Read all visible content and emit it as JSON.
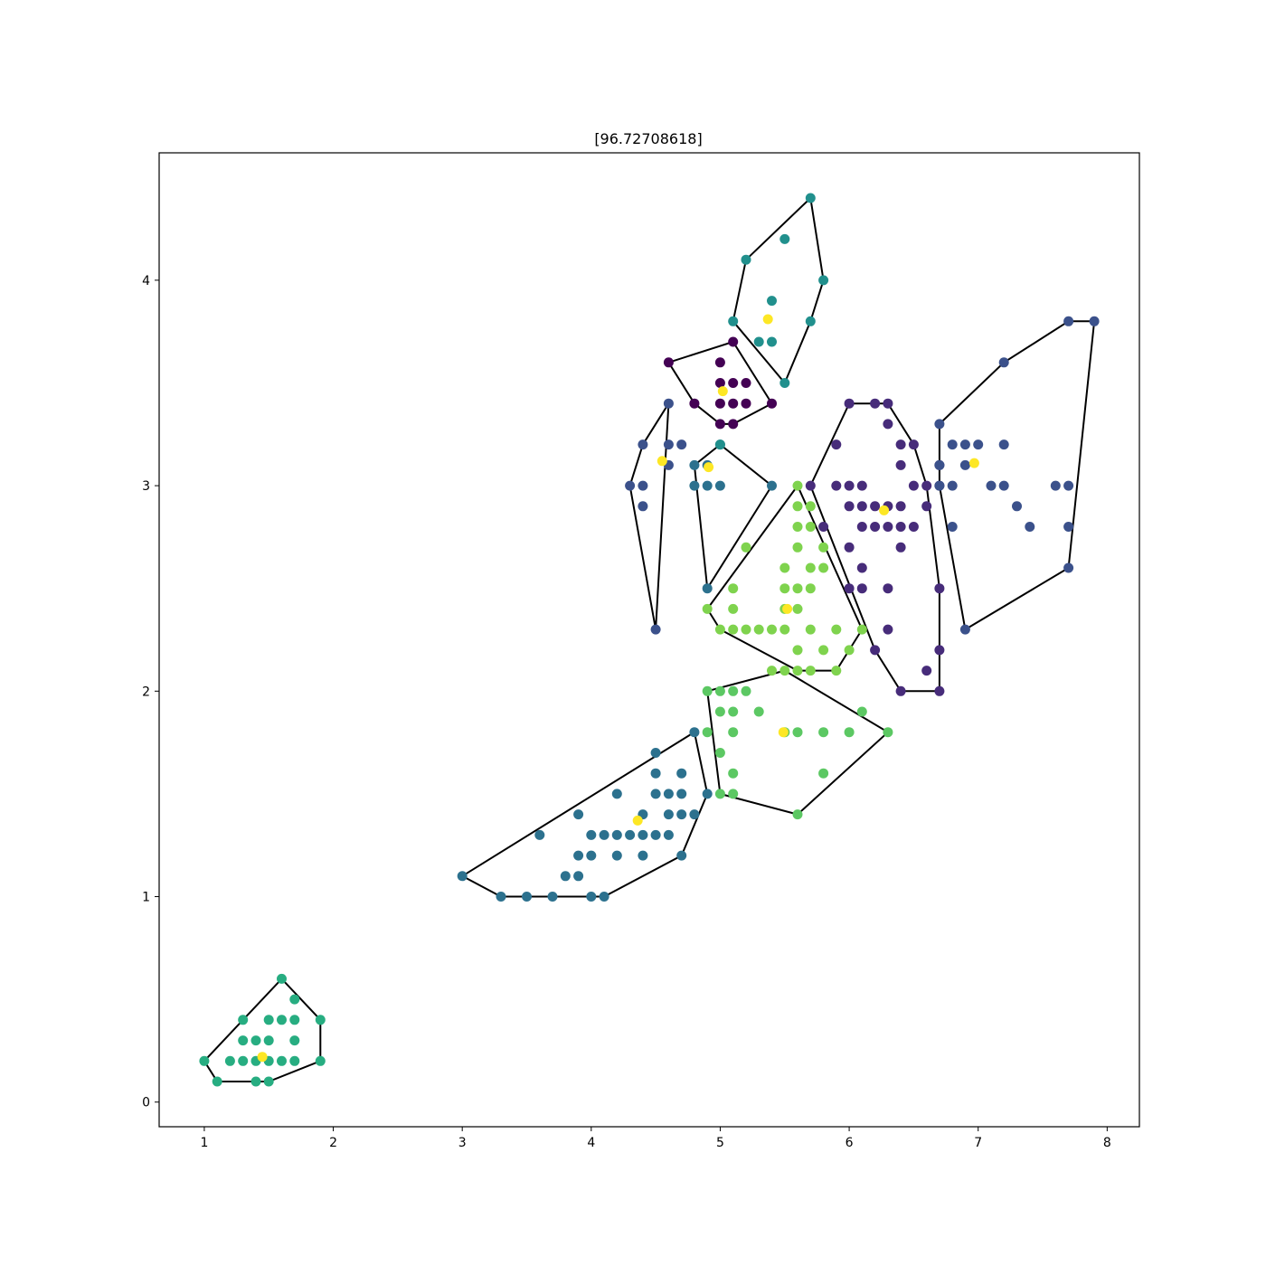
{
  "chart_data": {
    "type": "scatter",
    "title": "[96.72708618]",
    "xlabel": "",
    "ylabel": "",
    "xlim": [
      0.65,
      8.25
    ],
    "ylim": [
      -0.12,
      4.62
    ],
    "xticks": [
      1,
      2,
      3,
      4,
      5,
      6,
      7,
      8
    ],
    "yticks": [
      0,
      1,
      2,
      3,
      4
    ],
    "grid": false,
    "legend": "none",
    "colors": {
      "c0": "#440154",
      "c1": "#472c7a",
      "c2": "#3b518b",
      "c3": "#2c718e",
      "c4": "#21908d",
      "c5": "#27ad81",
      "c6": "#5cc863",
      "c7": "#7fd34e",
      "centroid": "#fde725",
      "hull": "#000000"
    },
    "clusters": [
      {
        "color": "c0",
        "points": [
          [
            4.6,
            3.6
          ],
          [
            4.8,
            3.4
          ],
          [
            5.0,
            3.6
          ],
          [
            5.0,
            3.5
          ],
          [
            5.0,
            3.4
          ],
          [
            5.0,
            3.3
          ],
          [
            5.1,
            3.7
          ],
          [
            5.1,
            3.5
          ],
          [
            5.1,
            3.4
          ],
          [
            5.1,
            3.3
          ],
          [
            5.2,
            3.5
          ],
          [
            5.2,
            3.4
          ],
          [
            5.4,
            3.4
          ]
        ],
        "hull": [
          [
            4.6,
            3.6
          ],
          [
            5.1,
            3.7
          ],
          [
            5.4,
            3.4
          ],
          [
            5.1,
            3.3
          ],
          [
            5.0,
            3.3
          ],
          [
            4.8,
            3.4
          ],
          [
            4.6,
            3.6
          ]
        ],
        "centroid": [
          5.02,
          3.46
        ]
      },
      {
        "color": "c1",
        "points": [
          [
            5.7,
            3.0
          ],
          [
            5.8,
            2.8
          ],
          [
            5.9,
            3.2
          ],
          [
            5.9,
            3.0
          ],
          [
            6.0,
            3.4
          ],
          [
            6.0,
            3.0
          ],
          [
            6.0,
            2.9
          ],
          [
            6.0,
            2.7
          ],
          [
            6.0,
            2.5
          ],
          [
            6.1,
            3.0
          ],
          [
            6.1,
            2.9
          ],
          [
            6.1,
            2.8
          ],
          [
            6.1,
            2.6
          ],
          [
            6.1,
            2.5
          ],
          [
            6.2,
            3.4
          ],
          [
            6.2,
            2.9
          ],
          [
            6.2,
            2.8
          ],
          [
            6.2,
            2.2
          ],
          [
            6.3,
            3.4
          ],
          [
            6.3,
            3.3
          ],
          [
            6.3,
            2.9
          ],
          [
            6.3,
            2.8
          ],
          [
            6.3,
            2.5
          ],
          [
            6.3,
            2.3
          ],
          [
            6.4,
            3.2
          ],
          [
            6.4,
            3.1
          ],
          [
            6.4,
            2.9
          ],
          [
            6.4,
            2.8
          ],
          [
            6.4,
            2.7
          ],
          [
            6.4,
            2.0
          ],
          [
            6.5,
            3.2
          ],
          [
            6.5,
            3.0
          ],
          [
            6.5,
            2.8
          ],
          [
            6.6,
            3.0
          ],
          [
            6.6,
            2.9
          ],
          [
            6.6,
            2.1
          ],
          [
            6.7,
            3.1
          ],
          [
            6.7,
            3.0
          ],
          [
            6.7,
            2.5
          ],
          [
            6.7,
            2.2
          ],
          [
            6.7,
            2.0
          ]
        ],
        "hull": [
          [
            5.7,
            3.0
          ],
          [
            6.0,
            3.4
          ],
          [
            6.3,
            3.4
          ],
          [
            6.5,
            3.2
          ],
          [
            6.6,
            3.0
          ],
          [
            6.7,
            2.5
          ],
          [
            6.7,
            2.0
          ],
          [
            6.4,
            2.0
          ],
          [
            6.2,
            2.2
          ],
          [
            5.7,
            3.0
          ]
        ],
        "centroid": [
          6.27,
          2.88
        ]
      },
      {
        "color": "c2",
        "points": [
          [
            6.7,
            3.3
          ],
          [
            6.7,
            3.1
          ],
          [
            6.7,
            3.0
          ],
          [
            6.8,
            3.2
          ],
          [
            6.8,
            3.0
          ],
          [
            6.8,
            2.8
          ],
          [
            6.9,
            3.2
          ],
          [
            6.9,
            3.1
          ],
          [
            6.9,
            2.3
          ],
          [
            7.0,
            3.2
          ],
          [
            7.1,
            3.0
          ],
          [
            7.2,
            3.6
          ],
          [
            7.2,
            3.2
          ],
          [
            7.2,
            3.0
          ],
          [
            7.3,
            2.9
          ],
          [
            7.4,
            2.8
          ],
          [
            7.6,
            3.0
          ],
          [
            7.7,
            3.8
          ],
          [
            7.7,
            3.0
          ],
          [
            7.7,
            2.8
          ],
          [
            7.7,
            2.6
          ],
          [
            7.9,
            3.8
          ],
          [
            4.3,
            3.0
          ],
          [
            4.4,
            3.2
          ],
          [
            4.4,
            3.0
          ],
          [
            4.4,
            2.9
          ],
          [
            4.5,
            2.3
          ],
          [
            4.6,
            3.4
          ],
          [
            4.6,
            3.2
          ],
          [
            4.6,
            3.1
          ],
          [
            4.7,
            3.2
          ]
        ],
        "hull": [
          [
            6.7,
            3.3
          ],
          [
            7.2,
            3.6
          ],
          [
            7.7,
            3.8
          ],
          [
            7.9,
            3.8
          ],
          [
            7.7,
            2.6
          ],
          [
            6.9,
            2.3
          ],
          [
            6.7,
            3.0
          ],
          [
            6.7,
            3.3
          ]
        ],
        "centroid": [
          6.97,
          3.11
        ]
      },
      {
        "color": "c2",
        "points": [],
        "hull": [
          [
            4.3,
            3.0
          ],
          [
            4.4,
            3.2
          ],
          [
            4.6,
            3.4
          ],
          [
            4.5,
            2.3
          ],
          [
            4.3,
            3.0
          ]
        ],
        "centroid": [
          4.55,
          3.12
        ]
      },
      {
        "color": "c3",
        "points": [
          [
            4.8,
            3.1
          ],
          [
            4.8,
            3.0
          ],
          [
            4.9,
            3.1
          ],
          [
            4.9,
            3.0
          ],
          [
            4.9,
            2.5
          ],
          [
            5.0,
            3.2
          ],
          [
            5.0,
            3.0
          ],
          [
            5.4,
            3.0
          ]
        ],
        "hull": [
          [
            4.8,
            3.1
          ],
          [
            5.0,
            3.2
          ],
          [
            5.4,
            3.0
          ],
          [
            4.9,
            2.5
          ],
          [
            4.8,
            3.1
          ]
        ],
        "centroid": [
          4.91,
          3.09
        ]
      },
      {
        "color": "c3",
        "points": [
          [
            3.0,
            1.1
          ],
          [
            3.3,
            1.0
          ],
          [
            3.5,
            1.0
          ],
          [
            3.6,
            1.3
          ],
          [
            3.7,
            1.0
          ],
          [
            3.8,
            1.1
          ],
          [
            3.9,
            1.4
          ],
          [
            3.9,
            1.2
          ],
          [
            3.9,
            1.1
          ],
          [
            4.0,
            1.3
          ],
          [
            4.0,
            1.2
          ],
          [
            4.0,
            1.0
          ],
          [
            4.1,
            1.3
          ],
          [
            4.1,
            1.0
          ],
          [
            4.2,
            1.5
          ],
          [
            4.2,
            1.3
          ],
          [
            4.2,
            1.2
          ],
          [
            4.3,
            1.3
          ],
          [
            4.4,
            1.4
          ],
          [
            4.4,
            1.3
          ],
          [
            4.4,
            1.2
          ],
          [
            4.5,
            1.7
          ],
          [
            4.5,
            1.6
          ],
          [
            4.5,
            1.5
          ],
          [
            4.5,
            1.3
          ],
          [
            4.6,
            1.5
          ],
          [
            4.6,
            1.4
          ],
          [
            4.6,
            1.3
          ],
          [
            4.7,
            1.6
          ],
          [
            4.7,
            1.5
          ],
          [
            4.7,
            1.4
          ],
          [
            4.7,
            1.2
          ],
          [
            4.8,
            1.8
          ],
          [
            4.8,
            1.4
          ],
          [
            4.9,
            1.5
          ]
        ],
        "hull": [
          [
            3.0,
            1.1
          ],
          [
            4.8,
            1.8
          ],
          [
            4.9,
            1.5
          ],
          [
            4.7,
            1.2
          ],
          [
            4.1,
            1.0
          ],
          [
            3.3,
            1.0
          ],
          [
            3.0,
            1.1
          ]
        ],
        "centroid": [
          4.36,
          1.37
        ]
      },
      {
        "color": "c4",
        "points": [
          [
            5.0,
            3.2
          ],
          [
            5.1,
            3.8
          ],
          [
            5.2,
            4.1
          ],
          [
            5.3,
            3.7
          ],
          [
            5.4,
            3.9
          ],
          [
            5.4,
            3.7
          ],
          [
            5.5,
            4.2
          ],
          [
            5.5,
            3.5
          ],
          [
            5.7,
            4.4
          ],
          [
            5.7,
            3.8
          ],
          [
            5.8,
            4.0
          ]
        ],
        "hull": [
          [
            5.1,
            3.8
          ],
          [
            5.2,
            4.1
          ],
          [
            5.7,
            4.4
          ],
          [
            5.8,
            4.0
          ],
          [
            5.7,
            3.8
          ],
          [
            5.5,
            3.5
          ],
          [
            5.1,
            3.8
          ]
        ],
        "centroid": [
          5.37,
          3.81
        ]
      },
      {
        "color": "c5",
        "points": [
          [
            1.0,
            0.2
          ],
          [
            1.1,
            0.1
          ],
          [
            1.2,
            0.2
          ],
          [
            1.3,
            0.4
          ],
          [
            1.3,
            0.3
          ],
          [
            1.3,
            0.2
          ],
          [
            1.4,
            0.3
          ],
          [
            1.4,
            0.2
          ],
          [
            1.4,
            0.1
          ],
          [
            1.5,
            0.4
          ],
          [
            1.5,
            0.3
          ],
          [
            1.5,
            0.2
          ],
          [
            1.5,
            0.1
          ],
          [
            1.6,
            0.6
          ],
          [
            1.6,
            0.4
          ],
          [
            1.6,
            0.2
          ],
          [
            1.7,
            0.5
          ],
          [
            1.7,
            0.4
          ],
          [
            1.7,
            0.3
          ],
          [
            1.7,
            0.2
          ],
          [
            1.9,
            0.4
          ],
          [
            1.9,
            0.2
          ]
        ],
        "hull": [
          [
            1.0,
            0.2
          ],
          [
            1.6,
            0.6
          ],
          [
            1.9,
            0.4
          ],
          [
            1.9,
            0.2
          ],
          [
            1.5,
            0.1
          ],
          [
            1.1,
            0.1
          ],
          [
            1.0,
            0.2
          ]
        ],
        "centroid": [
          1.45,
          0.22
        ]
      },
      {
        "color": "c6",
        "points": [
          [
            4.9,
            2.0
          ],
          [
            4.9,
            1.8
          ],
          [
            5.0,
            2.0
          ],
          [
            5.0,
            1.9
          ],
          [
            5.0,
            1.7
          ],
          [
            5.0,
            1.5
          ],
          [
            5.1,
            2.0
          ],
          [
            5.1,
            1.9
          ],
          [
            5.1,
            1.8
          ],
          [
            5.1,
            1.6
          ],
          [
            5.1,
            1.5
          ],
          [
            5.2,
            2.0
          ],
          [
            5.3,
            1.9
          ],
          [
            5.5,
            1.8
          ],
          [
            5.6,
            1.8
          ],
          [
            5.6,
            1.4
          ],
          [
            5.8,
            1.8
          ],
          [
            5.8,
            1.6
          ],
          [
            6.0,
            1.8
          ],
          [
            6.1,
            1.9
          ],
          [
            6.3,
            1.8
          ]
        ],
        "hull": [
          [
            4.9,
            2.0
          ],
          [
            5.5,
            2.1
          ],
          [
            6.3,
            1.8
          ],
          [
            5.6,
            1.4
          ],
          [
            5.0,
            1.5
          ],
          [
            4.9,
            2.0
          ]
        ],
        "centroid": [
          5.49,
          1.8
        ]
      },
      {
        "color": "c7",
        "points": [
          [
            4.9,
            2.4
          ],
          [
            5.0,
            2.3
          ],
          [
            5.1,
            2.5
          ],
          [
            5.1,
            2.4
          ],
          [
            5.1,
            2.3
          ],
          [
            5.2,
            2.7
          ],
          [
            5.2,
            2.3
          ],
          [
            5.3,
            2.3
          ],
          [
            5.4,
            2.3
          ],
          [
            5.4,
            2.1
          ],
          [
            5.5,
            2.6
          ],
          [
            5.5,
            2.5
          ],
          [
            5.5,
            2.4
          ],
          [
            5.5,
            2.3
          ],
          [
            5.5,
            2.1
          ],
          [
            5.6,
            3.0
          ],
          [
            5.6,
            2.9
          ],
          [
            5.6,
            2.8
          ],
          [
            5.6,
            2.7
          ],
          [
            5.6,
            2.5
          ],
          [
            5.6,
            2.4
          ],
          [
            5.6,
            2.2
          ],
          [
            5.6,
            2.1
          ],
          [
            5.7,
            2.9
          ],
          [
            5.7,
            2.8
          ],
          [
            5.7,
            2.6
          ],
          [
            5.7,
            2.5
          ],
          [
            5.7,
            2.3
          ],
          [
            5.7,
            2.1
          ],
          [
            5.8,
            2.7
          ],
          [
            5.8,
            2.6
          ],
          [
            5.8,
            2.2
          ],
          [
            5.9,
            2.3
          ],
          [
            5.9,
            2.1
          ],
          [
            6.0,
            2.2
          ],
          [
            6.1,
            2.3
          ]
        ],
        "hull": [
          [
            4.9,
            2.4
          ],
          [
            5.6,
            3.0
          ],
          [
            6.1,
            2.3
          ],
          [
            5.9,
            2.1
          ],
          [
            5.6,
            2.1
          ],
          [
            5.0,
            2.3
          ],
          [
            4.9,
            2.4
          ]
        ],
        "centroid": [
          5.52,
          2.4
        ]
      }
    ]
  }
}
